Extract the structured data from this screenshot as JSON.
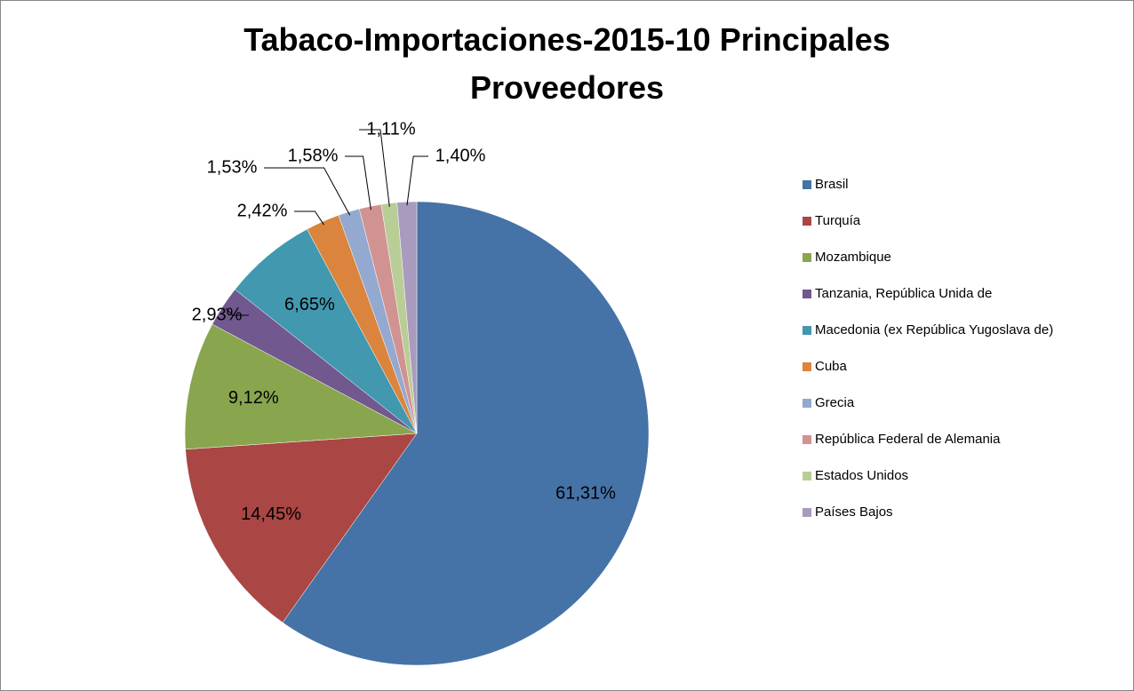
{
  "chart_data": {
    "type": "pie",
    "title": "Tabaco-Importaciones-2015-10 Principales Proveedores",
    "categories": [
      "Brasil",
      "Turquía",
      "Mozambique",
      "Tanzania, República Unida de",
      "Macedonia (ex República Yugoslava de)",
      "Cuba",
      "Grecia",
      "República Federal de Alemania",
      "Estados Unidos",
      "Países Bajos"
    ],
    "values": [
      61.31,
      14.45,
      9.12,
      2.93,
      6.65,
      2.42,
      1.53,
      1.58,
      1.11,
      1.4
    ],
    "value_labels": [
      "61,31%",
      "14,45%",
      "9,12%",
      "2,93%",
      "6,65%",
      "2,42%",
      "1,53%",
      "1,58%",
      "1,11%",
      "1,40%"
    ],
    "colors": [
      "#4572a7",
      "#aa4643",
      "#89a54e",
      "#71588f",
      "#4198af",
      "#db843d",
      "#93a9cf",
      "#d19392",
      "#b9cd96",
      "#a99bbd"
    ],
    "legend": "right"
  }
}
